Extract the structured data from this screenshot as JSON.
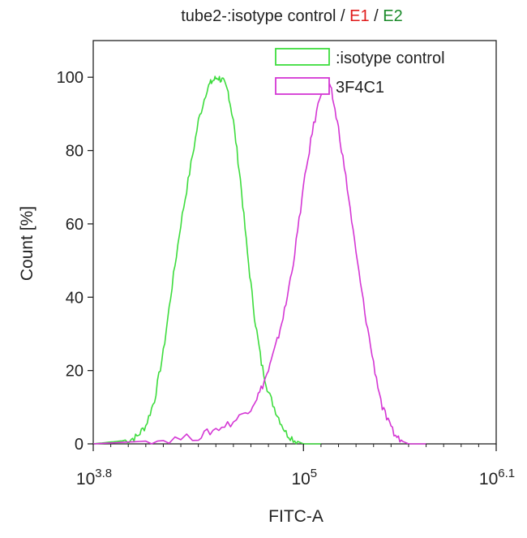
{
  "chart_data": {
    "type": "line",
    "title": {
      "prefix": "tube2-:isotype control / ",
      "e1": "E1",
      "sep": " / ",
      "e2": "E2",
      "e1_color": "#e01a1a",
      "e2_color": "#1a8a2a"
    },
    "xlabel": "FITC-A",
    "ylabel": "Count [%]",
    "xscale": "log10",
    "xlim_log10": [
      3.8,
      6.1
    ],
    "ylim": [
      0,
      110
    ],
    "yticks": [
      0,
      20,
      40,
      60,
      80,
      100
    ],
    "xticks": [
      {
        "value_log10": 3.8,
        "base": "10",
        "exp": "3.8"
      },
      {
        "value_log10": 5.0,
        "base": "10",
        "exp": "5"
      },
      {
        "value_log10": 6.1,
        "base": "10",
        "exp": "6.1"
      }
    ],
    "grid": false,
    "legend_position": "top-right",
    "series": [
      {
        "name": ":isotype control",
        "color": "#3ddc3d",
        "x_log10": [
          3.8,
          3.9,
          4.0,
          4.05,
          4.1,
          4.15,
          4.2,
          4.25,
          4.3,
          4.35,
          4.4,
          4.45,
          4.48,
          4.51,
          4.54,
          4.57,
          4.6,
          4.64,
          4.68,
          4.72,
          4.76,
          4.8,
          4.85,
          4.9,
          4.95,
          5.0,
          5.1
        ],
        "y": [
          0,
          0.5,
          1,
          2,
          5,
          12,
          25,
          43,
          60,
          74,
          88,
          97,
          99,
          100,
          99,
          96,
          88,
          72,
          52,
          35,
          22,
          14,
          8,
          3,
          1,
          0,
          0
        ]
      },
      {
        "name": "3F4C1",
        "color": "#d436d4",
        "x_log10": [
          3.8,
          4.0,
          4.2,
          4.4,
          4.5,
          4.6,
          4.7,
          4.75,
          4.8,
          4.85,
          4.9,
          4.95,
          5.0,
          5.05,
          5.1,
          5.13,
          5.16,
          5.2,
          5.25,
          5.3,
          5.35,
          5.4,
          5.45,
          5.5,
          5.55,
          5.6,
          5.7
        ],
        "y": [
          0,
          0.5,
          1,
          2,
          4,
          6,
          10,
          14,
          20,
          28,
          38,
          52,
          70,
          85,
          96,
          99,
          96,
          86,
          70,
          52,
          36,
          22,
          10,
          4,
          1,
          0,
          0
        ]
      }
    ]
  }
}
